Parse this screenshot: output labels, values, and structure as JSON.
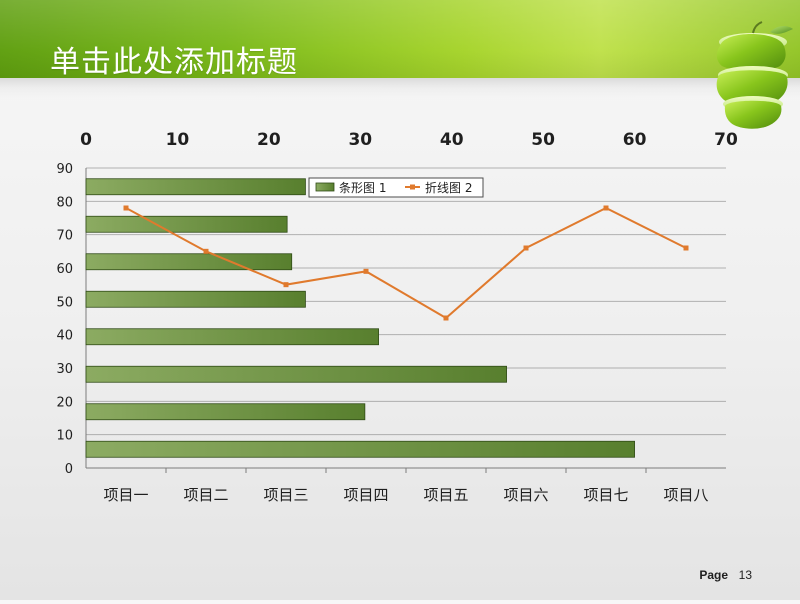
{
  "slide": {
    "title": "单击此处添加标题",
    "page_label": "Page",
    "page_number": "13"
  },
  "colors": {
    "header_left": "#5f9f0f",
    "header_right": "#bfe14a",
    "bar_fill_dark": "#587f2e",
    "bar_fill_light": "#8cab62",
    "line_color": "#e07a2d",
    "grid_color": "#7c7c7c",
    "text_color": "#1f1f1f"
  },
  "chart_data": {
    "type": "bar",
    "categories": [
      "项目一",
      "项目二",
      "项目三",
      "项目四",
      "项目五",
      "项目六",
      "项目七",
      "项目八"
    ],
    "x_ticks": [
      0,
      10,
      20,
      30,
      40,
      50,
      60,
      70
    ],
    "y_ticks": [
      0,
      10,
      20,
      30,
      40,
      50,
      60,
      70,
      80,
      90
    ],
    "xlim": [
      0,
      70
    ],
    "ylim": [
      0,
      90
    ],
    "legend": {
      "placement": "top-center",
      "items": [
        "条形图 1",
        "折线图 2"
      ]
    },
    "series": [
      {
        "name": "条形图 1",
        "type": "bar",
        "orientation": "horizontal",
        "values": [
          60,
          30.5,
          46,
          32,
          24,
          22.5,
          22,
          24
        ]
      },
      {
        "name": "折线图 2",
        "type": "line",
        "values": [
          78,
          65,
          55,
          59,
          45,
          66,
          78,
          66
        ]
      }
    ]
  }
}
